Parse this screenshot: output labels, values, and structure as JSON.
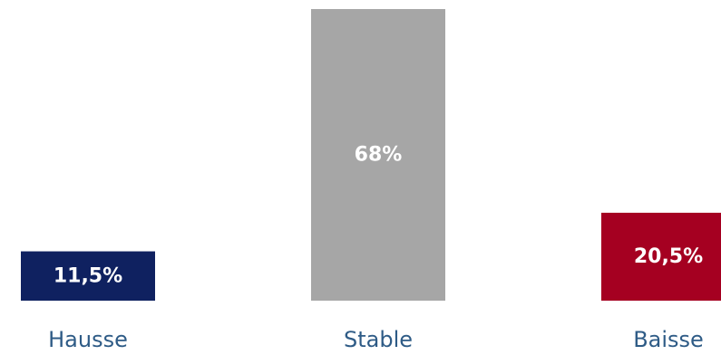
{
  "chart_data": {
    "type": "bar",
    "categories": [
      "Hausse",
      "Stable",
      "Baisse"
    ],
    "values": [
      11.5,
      68,
      20.5
    ],
    "value_labels": [
      "11,5%",
      "68%",
      "20,5%"
    ],
    "colors": [
      "#0f2160",
      "#a6a6a6",
      "#a50021"
    ],
    "category_label_color": "#2e5b86",
    "ylim": [
      0,
      68
    ],
    "title": "",
    "xlabel": "",
    "ylabel": "",
    "grid": false,
    "legend": "none"
  }
}
